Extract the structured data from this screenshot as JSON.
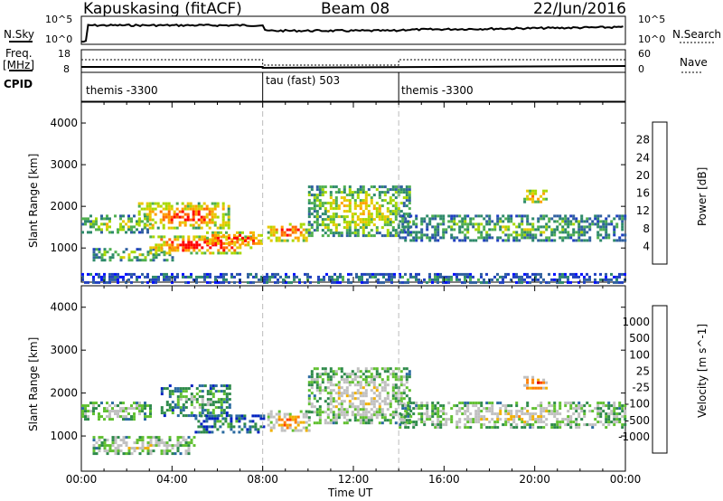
{
  "header": {
    "station": "Kapuskasing (fitACF)",
    "beam": "Beam 08",
    "date": "22/Jun/2016"
  },
  "side_labels": {
    "nsky": "N.Sky",
    "nsearch": "N.Search",
    "freq_top": "Freq.",
    "freq_unit": "[MHz]",
    "nave": "Nave",
    "cpid": "CPID"
  },
  "noise_axis": {
    "left_ticks": [
      "10^5",
      "10^0"
    ],
    "right_ticks": [
      "10^5",
      "10^0"
    ]
  },
  "freq_axis": {
    "left_ticks": [
      "18",
      "8"
    ],
    "right_ticks": [
      "60",
      "0"
    ]
  },
  "cpid_segments": [
    {
      "label": "themis -3300",
      "start_hour": 0
    },
    {
      "label": "tau (fast) 503",
      "start_hour": 8
    },
    {
      "label": "themis -3300",
      "start_hour": 14
    }
  ],
  "chart_data": [
    {
      "type": "heatmap",
      "ylabel": "Slant Range [km]",
      "xlabel": "Time UT",
      "xlim_hours": [
        0,
        24
      ],
      "ylim": [
        180,
        4500
      ],
      "yticks": [
        1000,
        2000,
        3000,
        4000
      ],
      "xtick_labels": [
        "00:00",
        "04:00",
        "08:00",
        "12:00",
        "16:00",
        "20:00",
        "00:00"
      ],
      "colorbar": {
        "label": "Power [dB]",
        "ticks": [
          "28",
          "24",
          "20",
          "16",
          "12",
          "8",
          "4"
        ],
        "colors": [
          "#ff0000",
          "#ff6a00",
          "#ffa000",
          "#e8c800",
          "#a8d800",
          "#50b050",
          "#2e8a6a",
          "#3060a0",
          "#2040c0",
          "#0010ff"
        ]
      },
      "bands": [
        {
          "t0": 0.0,
          "t1": 3.0,
          "r0": 1400,
          "r1": 1800,
          "level": 0.55
        },
        {
          "t0": 2.5,
          "t1": 6.5,
          "r0": 1500,
          "r1": 2100,
          "level": 0.85
        },
        {
          "t0": 0.5,
          "t1": 4.0,
          "r0": 700,
          "r1": 1000,
          "level": 0.5
        },
        {
          "t0": 3.0,
          "t1": 7.5,
          "r0": 900,
          "r1": 1300,
          "level": 0.95
        },
        {
          "t0": 5.5,
          "t1": 8.0,
          "r0": 1100,
          "r1": 1400,
          "level": 1.0
        },
        {
          "t0": 8.2,
          "t1": 10.0,
          "r0": 1200,
          "r1": 1600,
          "level": 0.85
        },
        {
          "t0": 10.0,
          "t1": 14.5,
          "r0": 1300,
          "r1": 2500,
          "level": 0.6
        },
        {
          "t0": 14.0,
          "t1": 24.0,
          "r0": 1200,
          "r1": 1800,
          "level": 0.45
        },
        {
          "t0": 19.5,
          "t1": 20.5,
          "r0": 2100,
          "r1": 2400,
          "level": 0.8
        },
        {
          "t0": 0.0,
          "t1": 24.0,
          "r0": 200,
          "r1": 400,
          "level": 0.3
        }
      ]
    },
    {
      "type": "heatmap",
      "ylabel": "Slant Range [km]",
      "xlabel": "Time UT",
      "xlim_hours": [
        0,
        24
      ],
      "ylim": [
        180,
        4500
      ],
      "yticks": [
        1000,
        2000,
        3000,
        4000
      ],
      "xtick_labels": [
        "00:00",
        "04:00",
        "08:00",
        "12:00",
        "16:00",
        "20:00",
        "00:00"
      ],
      "colorbar": {
        "label": "Velocity [m s^-1]",
        "ticks": [
          "1000",
          "500",
          "100",
          "25",
          "-25",
          "-100",
          "-500",
          "-1000"
        ],
        "colors": [
          "#0020c0",
          "#2a6aa0",
          "#2e8a4a",
          "#60c030",
          "#c0c0c0",
          "#c0c0c0",
          "#f0b000",
          "#ff8000",
          "#ff4000",
          "#e00000"
        ]
      },
      "bands": [
        {
          "t0": 0.0,
          "t1": 3.0,
          "r0": 1400,
          "r1": 1800,
          "level": 0.45
        },
        {
          "t0": 3.5,
          "t1": 6.5,
          "r0": 1500,
          "r1": 2200,
          "level": 0.3
        },
        {
          "t0": 5.0,
          "t1": 8.0,
          "r0": 1100,
          "r1": 1500,
          "level": 0.2
        },
        {
          "t0": 0.5,
          "t1": 5.0,
          "r0": 600,
          "r1": 1000,
          "level": 0.5
        },
        {
          "t0": 8.2,
          "t1": 10.0,
          "r0": 1100,
          "r1": 1600,
          "level": 0.7
        },
        {
          "t0": 10.0,
          "t1": 14.5,
          "r0": 1300,
          "r1": 2600,
          "level": 0.5
        },
        {
          "t0": 14.0,
          "t1": 24.0,
          "r0": 1200,
          "r1": 1800,
          "level": 0.5
        },
        {
          "t0": 19.5,
          "t1": 20.5,
          "r0": 2100,
          "r1": 2400,
          "level": 0.85
        }
      ]
    }
  ]
}
